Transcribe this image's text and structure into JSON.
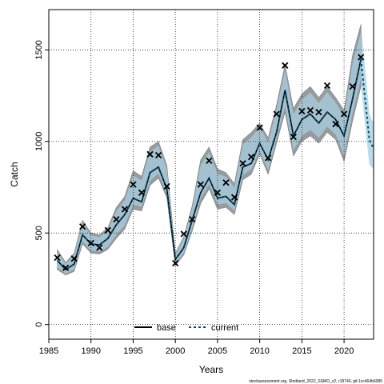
{
  "chart_data": {
    "type": "line",
    "title": "",
    "xlabel": "Years",
    "ylabel": "Catch",
    "xlim": [
      1985,
      2023.5
    ],
    "ylim": [
      -80,
      1720
    ],
    "xticks": [
      1985,
      1990,
      1995,
      2000,
      2005,
      2010,
      2015,
      2020
    ],
    "yticks": [
      0,
      500,
      1000,
      1500
    ],
    "grid": true,
    "legend_placement": "bottom-center",
    "colors": {
      "band_outer": "#8f8f8f",
      "band_inner": "#a7cde0",
      "band_tail": "#b9dceb",
      "current_line": "#0b4a6e",
      "observed_marker": "#000000"
    },
    "series": [
      {
        "name": "base",
        "style": "solid",
        "x": [
          1986,
          1987,
          1988,
          1989,
          1990,
          1991,
          1992,
          1993,
          1994,
          1995,
          1996,
          1997,
          1998,
          1999,
          2000,
          2001,
          2002,
          2003,
          2004,
          2005,
          2006,
          2007,
          2008,
          2009,
          2010,
          2011,
          2012,
          2013,
          2014,
          2015,
          2016,
          2017,
          2018,
          2019,
          2020,
          2021,
          2022
        ],
        "y": [
          350,
          300,
          330,
          490,
          440,
          435,
          470,
          545,
          600,
          690,
          670,
          830,
          860,
          740,
          355,
          420,
          570,
          720,
          800,
          690,
          700,
          655,
          860,
          880,
          990,
          900,
          1050,
          1280,
          1030,
          1120,
          1150,
          1100,
          1160,
          1120,
          1030,
          1230,
          1450
        ],
        "lower": [
          300,
          270,
          290,
          440,
          390,
          385,
          410,
          470,
          520,
          630,
          620,
          760,
          800,
          690,
          320,
          380,
          510,
          660,
          740,
          630,
          640,
          600,
          790,
          820,
          930,
          820,
          990,
          1160,
          920,
          1000,
          1030,
          990,
          1050,
          1010,
          890,
          1110,
          1300
        ],
        "upper": [
          410,
          340,
          390,
          570,
          500,
          490,
          530,
          640,
          700,
          840,
          810,
          970,
          1000,
          870,
          390,
          480,
          650,
          900,
          970,
          850,
          830,
          770,
          1010,
          1050,
          1100,
          1020,
          1200,
          1420,
          1180,
          1260,
          1300,
          1240,
          1300,
          1240,
          1170,
          1470,
          1640
        ]
      },
      {
        "name": "current",
        "style": "dashed",
        "x": [
          1986,
          1987,
          1988,
          1989,
          1990,
          1991,
          1992,
          1993,
          1994,
          1995,
          1996,
          1997,
          1998,
          1999,
          2000,
          2001,
          2002,
          2003,
          2004,
          2005,
          2006,
          2007,
          2008,
          2009,
          2010,
          2011,
          2012,
          2013,
          2014,
          2015,
          2016,
          2017,
          2018,
          2019,
          2020,
          2021,
          2022,
          2023,
          2023.5
        ],
        "y": [
          350,
          300,
          330,
          490,
          440,
          435,
          470,
          545,
          600,
          690,
          670,
          830,
          860,
          740,
          355,
          420,
          570,
          720,
          800,
          690,
          700,
          655,
          860,
          880,
          990,
          900,
          1050,
          1280,
          1030,
          1120,
          1150,
          1100,
          1160,
          1120,
          1030,
          1230,
          1450,
          1010,
          960
        ],
        "lower": [
          300,
          270,
          290,
          440,
          390,
          385,
          410,
          470,
          520,
          630,
          620,
          760,
          800,
          690,
          320,
          380,
          510,
          660,
          740,
          630,
          640,
          600,
          790,
          820,
          930,
          820,
          990,
          1160,
          920,
          1000,
          1030,
          990,
          1050,
          1010,
          890,
          1110,
          1300,
          870,
          850
        ],
        "upper": [
          410,
          340,
          390,
          570,
          500,
          490,
          530,
          640,
          700,
          840,
          810,
          970,
          1000,
          870,
          390,
          480,
          650,
          900,
          970,
          850,
          830,
          770,
          1010,
          1050,
          1100,
          1020,
          1200,
          1420,
          1180,
          1260,
          1300,
          1240,
          1300,
          1240,
          1170,
          1470,
          1640,
          1150,
          1100
        ]
      }
    ],
    "observed": {
      "x": [
        1986,
        1987,
        1988,
        1989,
        1990,
        1991,
        1992,
        1993,
        1994,
        1995,
        1996,
        1997,
        1998,
        1999,
        2000,
        2001,
        2002,
        2003,
        2004,
        2005,
        2006,
        2007,
        2008,
        2009,
        2010,
        2011,
        2012,
        2013,
        2014,
        2015,
        2016,
        2017,
        2018,
        2019,
        2020,
        2021,
        2022
      ],
      "y": [
        365,
        310,
        360,
        535,
        445,
        420,
        515,
        575,
        630,
        765,
        720,
        930,
        925,
        755,
        335,
        495,
        575,
        765,
        895,
        720,
        775,
        695,
        880,
        915,
        1075,
        910,
        1150,
        1415,
        1025,
        1165,
        1170,
        1160,
        1305,
        1095,
        1150,
        1300,
        1460
      ]
    },
    "footnote": "stockassessment.org, Shetland_2022_SSMO_v2, r18740, git:1cc464b6085"
  }
}
